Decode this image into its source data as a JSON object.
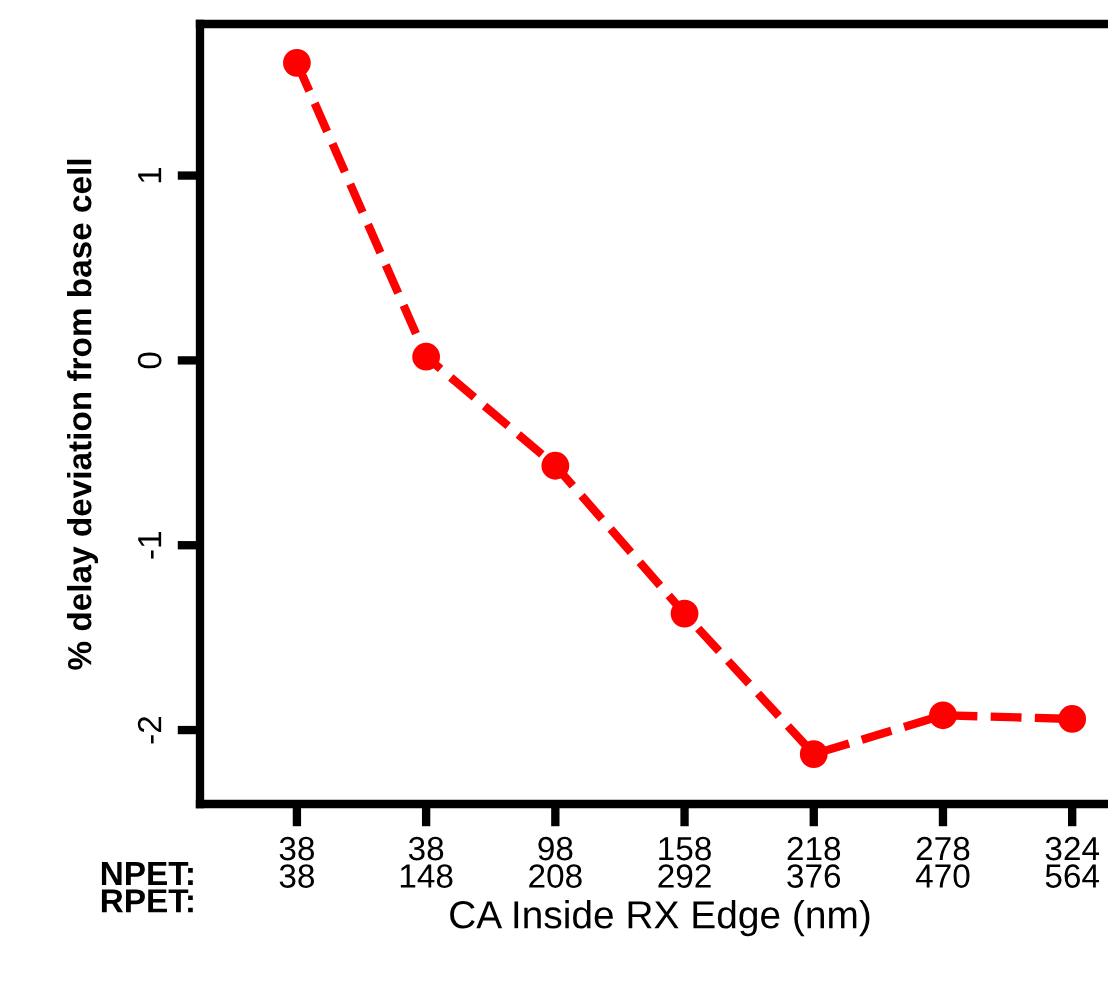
{
  "chart_data": {
    "type": "line",
    "xlabel": "CA Inside RX Edge (nm)",
    "ylabel": "% delay deviation from base cell",
    "categories": [
      "38\n38",
      "38\n148",
      "98\n208",
      "158\n292",
      "218\n376",
      "278\n470",
      "324\n564"
    ],
    "annotations": [
      "NPET:\nRPET:"
    ],
    "series": [
      {
        "color": "#ff0000",
        "values": [
          1.61,
          0.02,
          -0.57,
          -1.37,
          -2.13,
          -1.92,
          -1.94
        ]
      }
    ],
    "ylim": [
      -2.4,
      1.82
    ],
    "yticks": [
      {
        "value": 1,
        "label": "1"
      },
      {
        "value": 0,
        "label": "0"
      },
      {
        "value": -1,
        "label": "-1"
      },
      {
        "value": -2,
        "label": "-2"
      }
    ],
    "marker": "circle",
    "line_style": "dashed",
    "grid": false,
    "legend": false
  }
}
